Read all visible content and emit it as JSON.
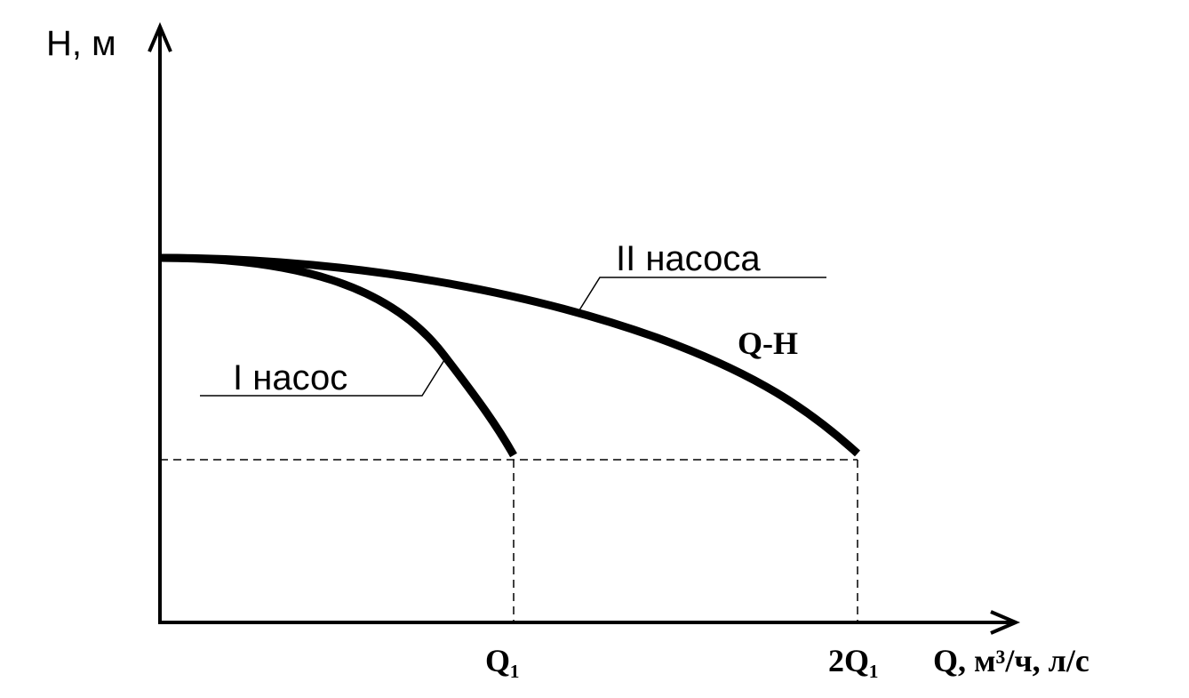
{
  "axes": {
    "y_label": "H, м",
    "x_label": "Q, м³/ч, л/с"
  },
  "ticks": {
    "q1": "Q₁",
    "two_q1": "2Q₁"
  },
  "curves": {
    "one_pump": "I насос",
    "two_pumps": "II насоса",
    "curve_name": "Q-H"
  }
}
